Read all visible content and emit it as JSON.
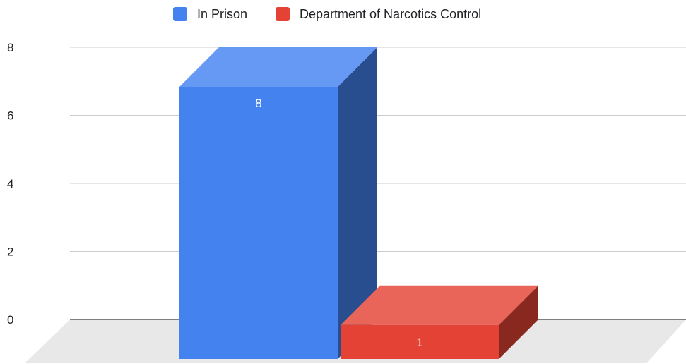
{
  "chart_data": {
    "type": "bar",
    "three_d": true,
    "title": "",
    "xlabel": "",
    "ylabel": "",
    "ylim": [
      0,
      8
    ],
    "yticks": [
      0,
      2,
      4,
      6,
      8
    ],
    "grid": true,
    "legend_position": "top",
    "series": [
      {
        "name": "In Prison",
        "value": 8,
        "color": "#4482F0",
        "data_label": "8"
      },
      {
        "name": "Department of Narcotics Control",
        "value": 1,
        "color": "#E44234",
        "data_label": "1"
      }
    ]
  }
}
